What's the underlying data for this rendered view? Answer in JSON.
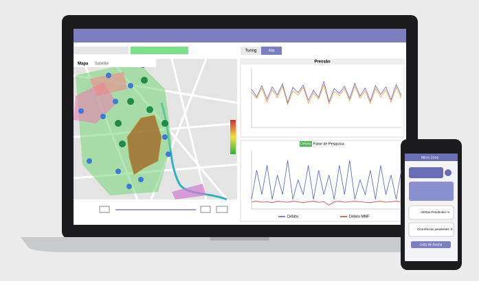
{
  "map": {
    "tabs": [
      "Mapa",
      "Satélite"
    ]
  },
  "toggle": [
    "Turing",
    "Ala"
  ],
  "pressure_chart": {
    "title": "Pressão",
    "ylim": [
      0,
      10
    ],
    "series": [
      {
        "color": "#6a5acd",
        "values": [
          6.5,
          5.2,
          7.1,
          4.8,
          6.9,
          5.5,
          7.4,
          4.2,
          6.8,
          5.9,
          7.2,
          4.6,
          6.3,
          5.1,
          7.8,
          4.4,
          6.6,
          5.8,
          7.0,
          4.9,
          7.5,
          5.3,
          6.7,
          4.5,
          7.1,
          5.6,
          6.9,
          4.7,
          7.3,
          5.4
        ]
      },
      {
        "color": "#e8a030",
        "values": [
          6.0,
          4.9,
          6.7,
          4.3,
          6.4,
          5.1,
          7.0,
          3.9,
          6.2,
          5.5,
          6.8,
          4.1,
          5.9,
          4.8,
          7.2,
          4.0,
          6.1,
          5.4,
          6.6,
          4.5,
          7.0,
          5.0,
          6.2,
          4.1,
          6.6,
          5.2,
          6.4,
          4.3,
          6.8,
          5.0
        ]
      }
    ]
  },
  "flow_chart": {
    "tabs": [
      "Débito",
      "Fator de Pesquisa"
    ],
    "ylim": [
      0,
      12
    ],
    "series": [
      {
        "name": "Débito",
        "color": "#4a5fc1",
        "values": [
          2,
          8,
          3,
          9,
          2,
          7,
          3,
          10,
          2,
          6,
          3,
          9,
          2,
          8,
          3,
          7,
          2,
          9,
          3,
          10,
          2,
          6,
          3,
          8,
          2,
          9,
          3,
          7,
          2,
          8
        ]
      },
      {
        "name": "Débito MNF",
        "color": "#d03030",
        "values": [
          1.5,
          1.6,
          1.4,
          1.5,
          1.3,
          1.6,
          1.5,
          1.4,
          1.6,
          1.5,
          1.3,
          1.5,
          1.6,
          1.4,
          1.5,
          0.8,
          1.5,
          1.6,
          1.4,
          1.5,
          1.6,
          1.5,
          1.4,
          1.3,
          1.5,
          1.6,
          1.4,
          1.5,
          1.6,
          1.5
        ]
      }
    ]
  },
  "phone": {
    "title": "Micro Zona",
    "items": [
      "Alertas Pendentes: 5",
      "Ocorrências pendentes: 8"
    ],
    "button": "Lista de Avaria"
  }
}
